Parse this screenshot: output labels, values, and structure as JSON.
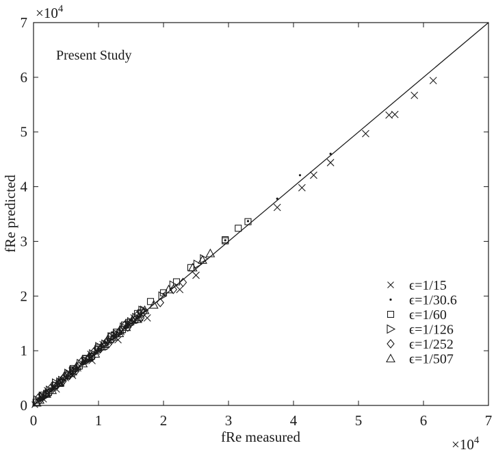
{
  "chart_data": {
    "type": "scatter",
    "title": "",
    "annotation": "Present Study",
    "xlabel": "fRe measured",
    "ylabel": "fRe predicted",
    "x_multiplier": "×10^4",
    "y_multiplier": "×10^4",
    "xlim": [
      0,
      7
    ],
    "ylim": [
      0,
      7
    ],
    "x_ticks": [
      "0",
      "1",
      "2",
      "3",
      "4",
      "5",
      "6",
      "7"
    ],
    "y_ticks": [
      "0",
      "1",
      "2",
      "3",
      "4",
      "5",
      "6",
      "7"
    ],
    "grid": false,
    "legend_position": "lower right",
    "reference_line": {
      "label": "y = x",
      "from": [
        0,
        0
      ],
      "to": [
        7,
        7
      ]
    },
    "series": [
      {
        "name": "ϵ=1/15",
        "marker": "x",
        "x": [
          3.75,
          4.13,
          4.31,
          4.57,
          5.11,
          5.47,
          5.56,
          5.86,
          6.15,
          2.5,
          2.25,
          1.75,
          1.3,
          0.9,
          0.6,
          0.35,
          0.15
        ],
        "y": [
          3.62,
          3.98,
          4.21,
          4.44,
          4.97,
          5.31,
          5.32,
          5.67,
          5.94,
          2.38,
          2.12,
          1.6,
          1.2,
          0.82,
          0.55,
          0.3,
          0.12
        ]
      },
      {
        "name": "ϵ=1/30.6",
        "marker": "dot",
        "x": [
          3.75,
          4.1,
          4.57,
          3.3,
          2.95,
          2.0,
          1.5,
          1.0,
          0.6,
          0.3
        ],
        "y": [
          3.78,
          4.21,
          4.6,
          3.37,
          3.02,
          2.04,
          1.55,
          1.04,
          0.63,
          0.32
        ]
      },
      {
        "name": "ϵ=1/60",
        "marker": "square",
        "x": [
          3.3,
          3.15,
          2.95,
          2.95,
          2.42,
          2.2,
          2.0,
          1.8,
          1.6,
          1.4,
          1.2,
          1.0,
          0.8,
          0.6,
          0.4,
          0.2
        ],
        "y": [
          3.36,
          3.24,
          3.01,
          3.03,
          2.52,
          2.26,
          2.06,
          1.9,
          1.68,
          1.47,
          1.27,
          1.06,
          0.86,
          0.65,
          0.43,
          0.22
        ]
      },
      {
        "name": "ϵ=1/126",
        "marker": "triangle-right",
        "x": [
          2.62,
          2.52,
          2.15,
          1.98,
          1.7,
          1.5,
          1.25,
          1.0,
          0.8,
          0.55,
          0.35,
          0.15
        ],
        "y": [
          2.68,
          2.58,
          2.2,
          2.0,
          1.74,
          1.53,
          1.27,
          1.02,
          0.82,
          0.56,
          0.36,
          0.16
        ]
      },
      {
        "name": "ϵ=1/252",
        "marker": "diamond",
        "x": [
          2.3,
          2.15,
          1.95,
          1.65,
          1.45,
          1.15,
          0.9,
          0.65,
          0.45,
          0.25,
          0.1
        ],
        "y": [
          2.25,
          2.12,
          1.88,
          1.6,
          1.43,
          1.12,
          0.88,
          0.63,
          0.44,
          0.24,
          0.1
        ]
      },
      {
        "name": "ϵ=1/507",
        "marker": "triangle-up",
        "x": [
          2.72,
          2.6,
          2.45,
          2.08,
          1.85,
          1.6,
          1.32,
          1.1,
          0.85,
          0.6,
          0.4,
          0.2,
          0.05
        ],
        "y": [
          2.78,
          2.66,
          2.52,
          2.12,
          1.84,
          1.58,
          1.32,
          1.12,
          0.88,
          0.62,
          0.41,
          0.21,
          0.05
        ]
      }
    ]
  },
  "plot": {
    "annotation": "Present Study",
    "xlabel": "fRe measured",
    "ylabel": "fRe predicted",
    "x_exp_base": "×10",
    "x_exp_pow": "4",
    "y_exp_base": "×10",
    "y_exp_pow": "4",
    "x_ticks": [
      "0",
      "1",
      "2",
      "3",
      "4",
      "5",
      "6",
      "7"
    ],
    "y_ticks": [
      "0",
      "1",
      "2",
      "3",
      "4",
      "5",
      "6",
      "7"
    ],
    "legend": [
      {
        "marker": "x",
        "label": "ϵ=1/15"
      },
      {
        "marker": "dot",
        "label": "ϵ=1/30.6"
      },
      {
        "marker": "square",
        "label": "ϵ=1/60"
      },
      {
        "marker": "triangle-right",
        "label": "ϵ=1/126"
      },
      {
        "marker": "diamond",
        "label": "ϵ=1/252"
      },
      {
        "marker": "triangle-up",
        "label": "ϵ=1/507"
      }
    ],
    "colors": {
      "axis": "#1a1a1a",
      "marker": "#1a1a1a",
      "background": "#ffffff"
    }
  }
}
